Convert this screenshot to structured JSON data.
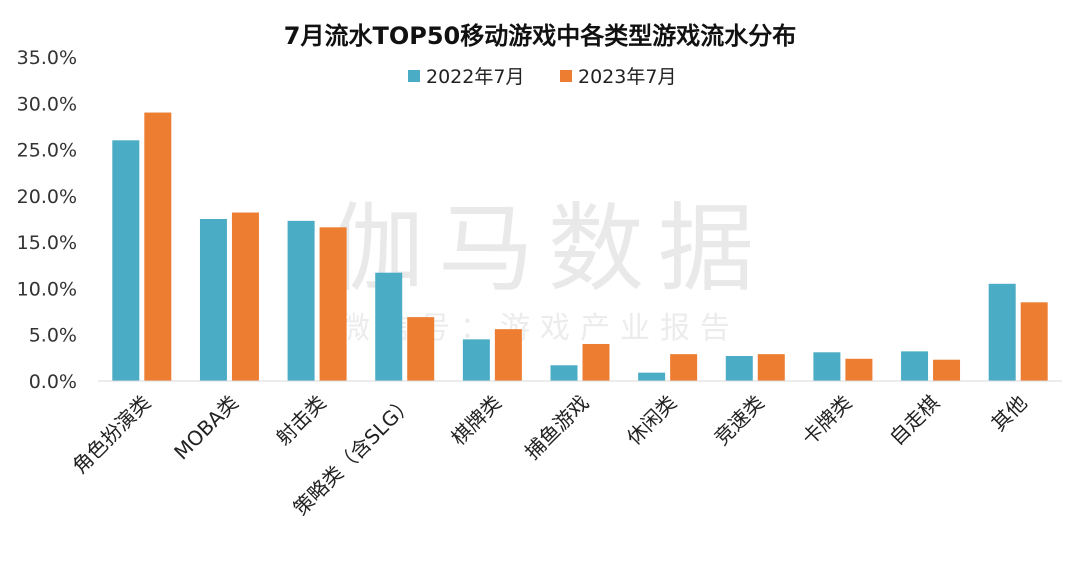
{
  "chart_data": {
    "type": "bar",
    "title": "7月流水TOP50移动游戏中各类型游戏流水分布",
    "categories": [
      "角色扮演类",
      "MOBA类",
      "射击类",
      "策略类（含SLG）",
      "棋牌类",
      "捕鱼游戏",
      "休闲类",
      "竞速类",
      "卡牌类",
      "自走棋",
      "其他"
    ],
    "series": [
      {
        "name": "2022年7月",
        "color": "#4bacc6",
        "values": [
          26.0,
          17.5,
          17.3,
          11.7,
          4.5,
          1.7,
          0.9,
          2.7,
          3.1,
          3.2,
          10.5
        ]
      },
      {
        "name": "2023年7月",
        "color": "#ed7d31",
        "values": [
          29.0,
          18.2,
          16.6,
          6.9,
          5.6,
          4.0,
          2.9,
          2.9,
          2.4,
          2.3,
          8.5
        ]
      }
    ],
    "ylim": [
      0,
      35
    ],
    "yticks": [
      "0.0%",
      "5.0%",
      "10.0%",
      "15.0%",
      "20.0%",
      "25.0%",
      "30.0%",
      "35.0%"
    ],
    "legend_position": "top-center",
    "grid": false
  },
  "watermark": {
    "main": "伽马数据",
    "sub": "微信号：游戏产业报告"
  }
}
